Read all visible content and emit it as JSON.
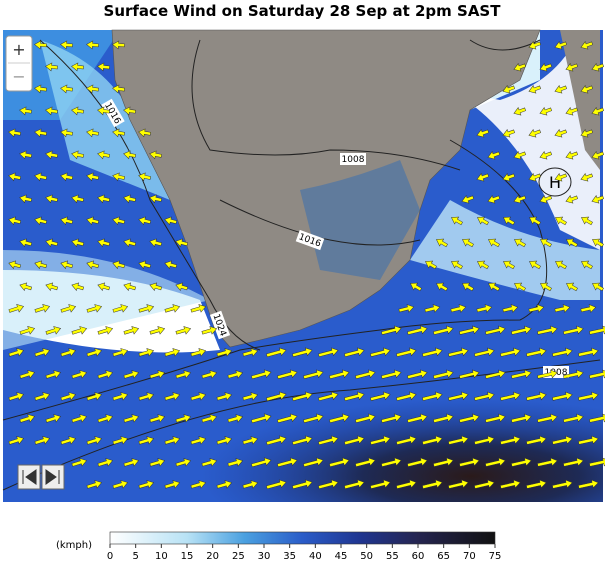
{
  "header": {
    "title": "Surface Wind on Saturday 28 Sep at 2pm SAST"
  },
  "controls": {
    "zoom_in": "+",
    "zoom_out": "−"
  },
  "map": {
    "isobar_labels": [
      "1016",
      "1008",
      "1016",
      "1024",
      "1008"
    ],
    "pressure_center": "H"
  },
  "legend": {
    "unit": "(kmph)",
    "ticks": [
      0,
      5,
      10,
      15,
      20,
      25,
      30,
      35,
      40,
      45,
      50,
      55,
      60,
      65,
      70,
      75
    ]
  }
}
